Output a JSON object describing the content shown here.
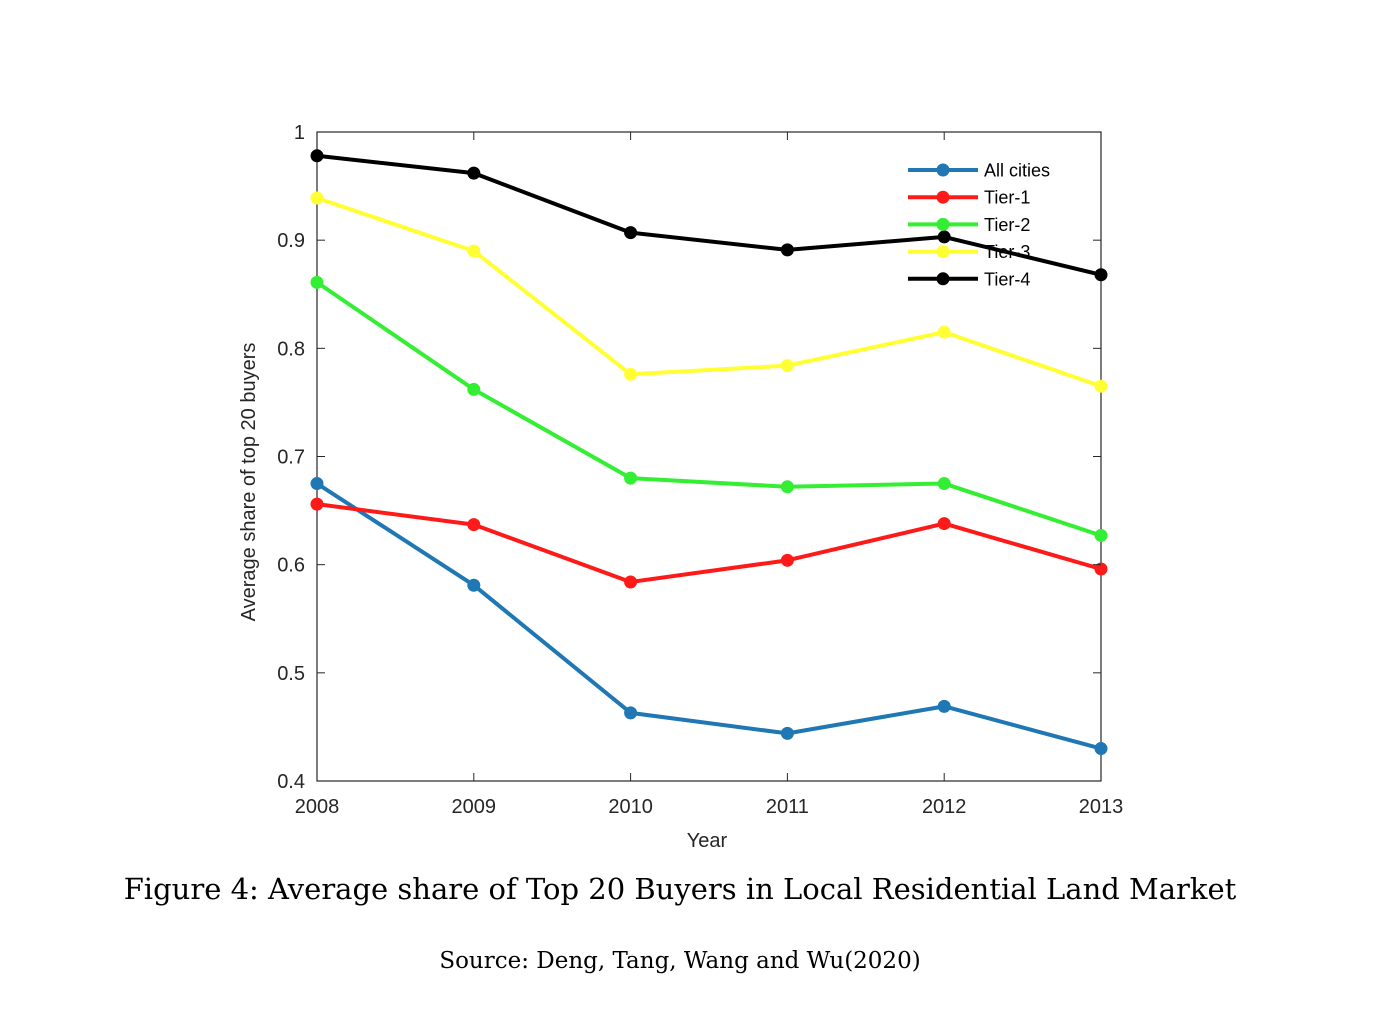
{
  "chart_data": {
    "type": "line",
    "title": "",
    "xlabel": "Year",
    "ylabel": "Average share of top 20 buyers",
    "x": [
      "2008",
      "2009",
      "2010",
      "2011",
      "2012",
      "2013"
    ],
    "ylim": [
      0.4,
      1.0
    ],
    "yticks": [
      "0.4",
      "0.5",
      "0.6",
      "0.7",
      "0.8",
      "0.9",
      "1"
    ],
    "grid": false,
    "legend_position": "top-right",
    "series": [
      {
        "name": "All cities",
        "color": "#1f77b4",
        "values": [
          0.675,
          0.581,
          0.463,
          0.444,
          0.469,
          0.43
        ]
      },
      {
        "name": "Tier-1",
        "color": "#ff1a1a",
        "values": [
          0.656,
          0.637,
          0.584,
          0.604,
          0.638,
          0.596
        ]
      },
      {
        "name": "Tier-2",
        "color": "#33ee33",
        "values": [
          0.861,
          0.762,
          0.68,
          0.672,
          0.675,
          0.627
        ]
      },
      {
        "name": "Tier-3",
        "color": "#ffff33",
        "values": [
          0.939,
          0.89,
          0.776,
          0.784,
          0.815,
          0.765
        ]
      },
      {
        "name": "Tier-4",
        "color": "#000000",
        "values": [
          0.978,
          0.962,
          0.907,
          0.891,
          0.903,
          0.868
        ]
      }
    ]
  },
  "caption": {
    "figure": "Figure 4: Average share of Top 20 Buyers in Local Residential Land Market",
    "source": "Source: Deng, Tang, Wang and Wu(2020)"
  }
}
